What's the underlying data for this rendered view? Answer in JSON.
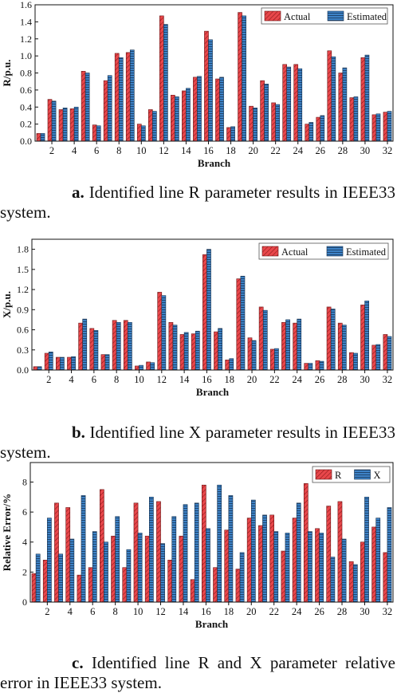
{
  "colors": {
    "actual": "#e8474b",
    "estimated": "#3d82c6",
    "actual_stroke": "#6b1414",
    "estimated_stroke": "#14304f"
  },
  "captions": [
    {
      "label": "a.",
      "text": "Identified line R parameter results in IEEE33 system."
    },
    {
      "label": "b.",
      "text": "Identified line X parameter results in IEEE33 system."
    },
    {
      "label": "c.",
      "text": "Identified line R and X parameter relative error in IEEE33 system."
    }
  ],
  "chart_data": [
    {
      "type": "bar",
      "xlabel": "Branch",
      "ylabel": "R/p.u.",
      "ylim": [
        0,
        1.6
      ],
      "yticks": [
        "0.0",
        "0.2",
        "0.4",
        "0.6",
        "0.8",
        "1.0",
        "1.2",
        "1.4",
        "1.6"
      ],
      "xticks": [
        "2",
        "4",
        "6",
        "8",
        "10",
        "12",
        "14",
        "16",
        "18",
        "20",
        "22",
        "24",
        "26",
        "28",
        "30",
        "32"
      ],
      "legend_position": "top-right",
      "categories": [
        1,
        2,
        3,
        4,
        5,
        6,
        7,
        8,
        9,
        10,
        11,
        12,
        13,
        14,
        15,
        16,
        17,
        18,
        19,
        20,
        21,
        22,
        23,
        24,
        25,
        26,
        27,
        28,
        29,
        30,
        31,
        32
      ],
      "series": [
        {
          "name": "Actual",
          "values": [
            0.09,
            0.49,
            0.37,
            0.38,
            0.82,
            0.19,
            0.71,
            1.03,
            1.04,
            0.2,
            0.37,
            1.47,
            0.54,
            0.59,
            0.75,
            1.29,
            0.73,
            0.16,
            1.51,
            0.41,
            0.71,
            0.45,
            0.9,
            0.9,
            0.2,
            0.28,
            1.06,
            0.8,
            0.51,
            0.98,
            0.31,
            0.34
          ]
        },
        {
          "name": "Estimated",
          "values": [
            0.09,
            0.47,
            0.39,
            0.4,
            0.8,
            0.18,
            0.77,
            0.98,
            1.07,
            0.18,
            0.35,
            1.37,
            0.52,
            0.62,
            0.76,
            1.19,
            0.75,
            0.17,
            1.47,
            0.39,
            0.67,
            0.43,
            0.87,
            0.85,
            0.22,
            0.3,
            0.99,
            0.86,
            0.52,
            1.01,
            0.32,
            0.35
          ]
        }
      ]
    },
    {
      "type": "bar",
      "xlabel": "Branch",
      "ylabel": "X/p.u.",
      "ylim": [
        0,
        1.95
      ],
      "yticks": [
        "0.0",
        "0.3",
        "0.6",
        "0.9",
        "1.2",
        "1.5",
        "1.8"
      ],
      "xticks": [
        "2",
        "4",
        "6",
        "8",
        "10",
        "12",
        "14",
        "16",
        "18",
        "20",
        "22",
        "24",
        "26",
        "28",
        "30",
        "32"
      ],
      "legend_position": "top-right",
      "categories": [
        1,
        2,
        3,
        4,
        5,
        6,
        7,
        8,
        9,
        10,
        11,
        12,
        13,
        14,
        15,
        16,
        17,
        18,
        19,
        20,
        21,
        22,
        23,
        24,
        25,
        26,
        27,
        28,
        29,
        30,
        31,
        32
      ],
      "series": [
        {
          "name": "Actual",
          "values": [
            0.05,
            0.25,
            0.19,
            0.19,
            0.7,
            0.62,
            0.23,
            0.74,
            0.74,
            0.06,
            0.12,
            1.16,
            0.71,
            0.53,
            0.54,
            1.72,
            0.57,
            0.15,
            1.36,
            0.48,
            0.94,
            0.31,
            0.71,
            0.7,
            0.1,
            0.14,
            0.94,
            0.7,
            0.26,
            0.97,
            0.37,
            0.53
          ]
        },
        {
          "name": "Estimated",
          "values": [
            0.05,
            0.27,
            0.19,
            0.2,
            0.76,
            0.59,
            0.23,
            0.71,
            0.71,
            0.07,
            0.11,
            1.11,
            0.67,
            0.56,
            0.58,
            1.8,
            0.62,
            0.17,
            1.4,
            0.44,
            0.89,
            0.32,
            0.75,
            0.76,
            0.1,
            0.13,
            0.91,
            0.67,
            0.25,
            1.03,
            0.38,
            0.5
          ]
        }
      ]
    },
    {
      "type": "bar",
      "xlabel": "Branch",
      "ylabel": "Relative Error/%",
      "ylim": [
        0,
        9.3
      ],
      "yticks": [
        "0",
        "2",
        "4",
        "6",
        "8"
      ],
      "xticks": [
        "2",
        "4",
        "6",
        "8",
        "10",
        "12",
        "14",
        "16",
        "18",
        "20",
        "22",
        "24",
        "26",
        "28",
        "30",
        "32"
      ],
      "legend_position": "top-right",
      "categories": [
        1,
        2,
        3,
        4,
        5,
        6,
        7,
        8,
        9,
        10,
        11,
        12,
        13,
        14,
        15,
        16,
        17,
        18,
        19,
        20,
        21,
        22,
        23,
        24,
        25,
        26,
        27,
        28,
        29,
        30,
        31,
        32
      ],
      "series": [
        {
          "name": "R",
          "values": [
            1.9,
            2.8,
            6.6,
            6.3,
            1.8,
            2.3,
            7.5,
            4.4,
            2.3,
            6.6,
            4.4,
            6.7,
            2.8,
            4.4,
            1.5,
            7.8,
            2.3,
            4.8,
            2.2,
            5.6,
            5.1,
            5.8,
            3.4,
            5.6,
            7.9,
            4.9,
            6.4,
            6.7,
            2.7,
            4.0,
            5.0,
            3.3
          ]
        },
        {
          "name": "X",
          "values": [
            3.2,
            5.6,
            3.2,
            4.2,
            7.1,
            4.7,
            4.0,
            5.7,
            3.5,
            4.6,
            7.0,
            3.9,
            5.7,
            6.5,
            6.6,
            4.9,
            7.8,
            7.1,
            3.3,
            6.8,
            5.8,
            4.7,
            4.6,
            6.6,
            4.7,
            4.6,
            3.0,
            4.2,
            2.5,
            7.0,
            5.6,
            6.3
          ]
        }
      ]
    }
  ]
}
